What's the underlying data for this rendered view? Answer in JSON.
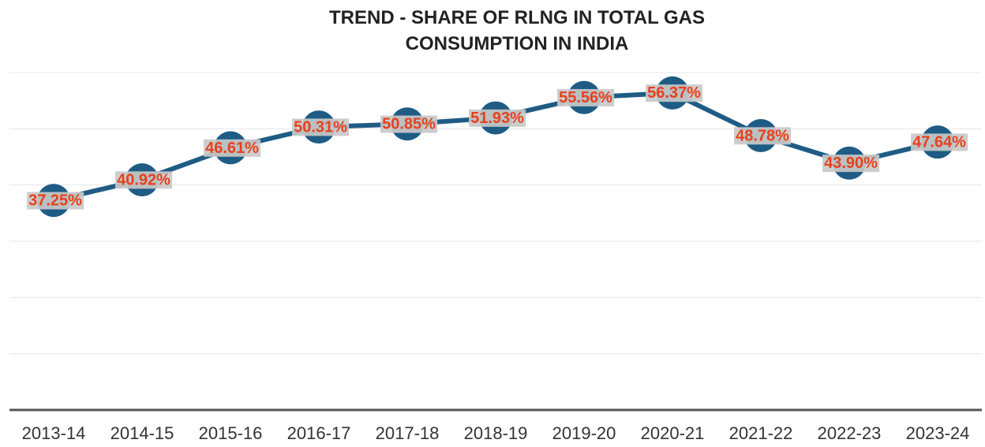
{
  "chart_data": {
    "type": "line",
    "title": "TREND - SHARE OF RLNG IN TOTAL GAS CONSUMPTION IN INDIA",
    "categories": [
      "2013-14",
      "2014-15",
      "2015-16",
      "2016-17",
      "2017-18",
      "2018-19",
      "2019-20",
      "2020-21",
      "2021-22",
      "2022-23",
      "2023-24"
    ],
    "series": [
      {
        "color": "#1f5c85",
        "values": [
          37.25,
          40.92,
          46.61,
          50.31,
          50.85,
          51.93,
          55.56,
          56.37,
          48.78,
          43.9,
          47.64
        ],
        "value_labels": [
          "37.25%",
          "40.92%",
          "46.61%",
          "50.31%",
          "50.85%",
          "51.93%",
          "55.56%",
          "56.37%",
          "48.78%",
          "43.90%",
          "47.64%"
        ]
      }
    ],
    "ylim": [
      0,
      60
    ],
    "yticks": [
      0,
      10,
      20,
      30,
      40,
      50,
      60
    ],
    "grid": true
  }
}
